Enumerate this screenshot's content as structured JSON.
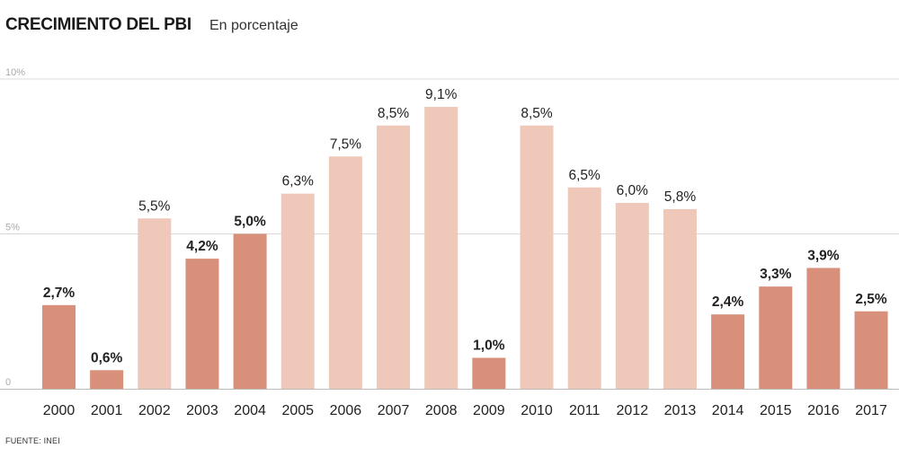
{
  "header": {
    "title": "CRECIMIENTO DEL PBI",
    "subtitle": "En porcentaje"
  },
  "footer": {
    "source": "FUENTE: INEI"
  },
  "colors": {
    "dark_bar": "#d9907b",
    "light_bar": "#efc8b9",
    "grid": "#d8d8d8"
  },
  "chart_data": {
    "type": "bar",
    "title": "CRECIMIENTO DEL PBI",
    "subtitle": "En porcentaje",
    "xlabel": "",
    "ylabel": "",
    "ylim": [
      0,
      10
    ],
    "yticks": [
      "0",
      "5%",
      "10%"
    ],
    "yticks_values": [
      0,
      5,
      10
    ],
    "grid": true,
    "categories": [
      "2000",
      "2001",
      "2002",
      "2003",
      "2004",
      "2005",
      "2006",
      "2007",
      "2008",
      "2009",
      "2010",
      "2011",
      "2012",
      "2013",
      "2014",
      "2015",
      "2016",
      "2017"
    ],
    "values": [
      2.7,
      0.6,
      5.5,
      4.2,
      5.0,
      6.3,
      7.5,
      8.5,
      9.1,
      1.0,
      8.5,
      6.5,
      6.0,
      5.8,
      2.4,
      3.3,
      3.9,
      2.5
    ],
    "labels": [
      "2,7%",
      "0,6%",
      "5,5%",
      "4,2%",
      "5,0%",
      "6,3%",
      "7,5%",
      "8,5%",
      "9,1%",
      "1,0%",
      "8,5%",
      "6,5%",
      "6,0%",
      "5,8%",
      "2,4%",
      "3,3%",
      "3,9%",
      "2,5%"
    ],
    "highlight": [
      true,
      true,
      false,
      true,
      true,
      false,
      false,
      false,
      false,
      true,
      false,
      false,
      false,
      false,
      true,
      true,
      true,
      true
    ]
  }
}
